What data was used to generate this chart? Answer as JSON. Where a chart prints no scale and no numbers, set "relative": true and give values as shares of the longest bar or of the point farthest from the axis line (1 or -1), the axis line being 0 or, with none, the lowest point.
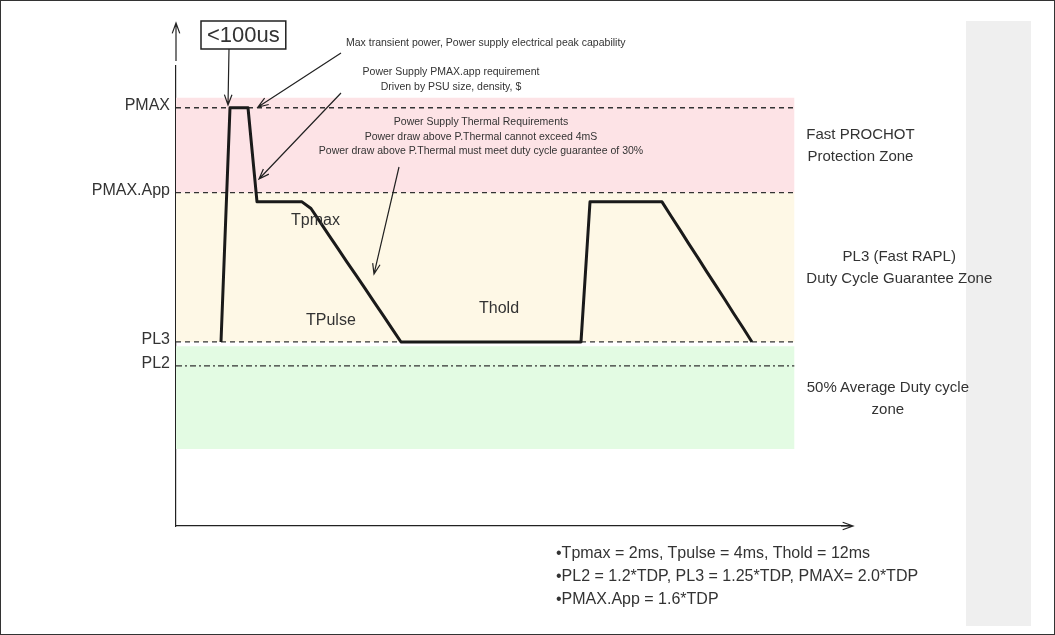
{
  "chart_data": {
    "type": "line",
    "relative": true,
    "grid": false,
    "legend": false,
    "marker": "none",
    "line_style": "solid",
    "categories": [
      null,
      null,
      null,
      null,
      null,
      null,
      null,
      null,
      null,
      null,
      null,
      null,
      null,
      null,
      null,
      null,
      null,
      null,
      null,
      null,
      null,
      null,
      null,
      null,
      null,
      null,
      null,
      null,
      null,
      null,
      null,
      null,
      null,
      null,
      null,
      null,
      null,
      null,
      null,
      null,
      null,
      null,
      null,
      null,
      null,
      null,
      null,
      null,
      null,
      null,
      null,
      null,
      null,
      null,
      null,
      null,
      null,
      null,
      null,
      null,
      null,
      null,
      null,
      null,
      null,
      null,
      null,
      null,
      null,
      null,
      null,
      null,
      null,
      null,
      null,
      null
    ],
    "series": [
      {
        "color": "#1a1a1a",
        "values": [
          null,
          null,
          null,
          null,
          null,
          0.44,
          1,
          1,
          1,
          0.775,
          0.775,
          0.775,
          0.775,
          0.775,
          0.775,
          0.759,
          0.727,
          0.695,
          0.663,
          0.631,
          0.6,
          0.568,
          0.536,
          0.504,
          0.472,
          0.44,
          0.44,
          0.44,
          0.44,
          0.44,
          0.44,
          0.44,
          0.44,
          0.44,
          0.44,
          0.44,
          0.44,
          0.44,
          0.44,
          0.44,
          0.44,
          0.44,
          0.44,
          0.44,
          0.44,
          0.44,
          0.775,
          0.775,
          0.775,
          0.775,
          0.775,
          0.775,
          0.775,
          0.775,
          0.775,
          0.741,
          0.708,
          0.674,
          0.641,
          0.607,
          0.574,
          0.541,
          0.507,
          0.474,
          0.44,
          null,
          null,
          null,
          null,
          null,
          null,
          null,
          null,
          null,
          null,
          null
        ]
      }
    ],
    "ref_lines": [
      {
        "axis": "y",
        "value": 1,
        "label": "PMAX",
        "line_style": "dashed",
        "color": "#333333"
      },
      {
        "axis": "y",
        "value": 0.797,
        "label": "PMAX.App",
        "line_style": "dashed",
        "color": "#333333"
      },
      {
        "axis": "y",
        "value": 0.44,
        "label": "PL3",
        "line_style": "dashed",
        "color": "#333333"
      },
      {
        "axis": "y",
        "value": 0.383,
        "label": "PL2",
        "line_style": "dashdot",
        "color": "#333333"
      }
    ],
    "bands": [
      {
        "axis": "y",
        "from": 0.797,
        "to": 1.024,
        "label": "Fast PROCHOT\nProtection Zone",
        "color": "#fde3e6"
      },
      {
        "axis": "y",
        "from": 0.44,
        "to": 0.797,
        "label": "PL3 (Fast RAPL)\nDuty Cycle Guarantee Zone",
        "color": "#fef8e6"
      },
      {
        "axis": "y",
        "from": 0.184,
        "to": 0.43,
        "label": "50% Average Duty cycle\nzone",
        "color": "#e3fbe3"
      }
    ],
    "annotations": [
      "<100us",
      "Max transient power, Power supply electrical peak capability",
      "Power Supply PMAX.app requirement\nDriven by PSU size, density, $",
      "Power Supply Thermal Requirements\nPower draw above P.Thermal cannot exceed 4mS\nPower draw above P.Thermal must meet duty cycle guarantee of 30%",
      "Tpmax",
      "TPulse",
      "Thold",
      "•Tpmax = 2ms, Tpulse = 4ms, Thold = 12ms",
      "•PL2 = 1.2*TDP, PL3 = 1.25*TDP, PMAX= 2.0*TDP",
      "•PMAX.App = 1.6*TDP"
    ]
  }
}
